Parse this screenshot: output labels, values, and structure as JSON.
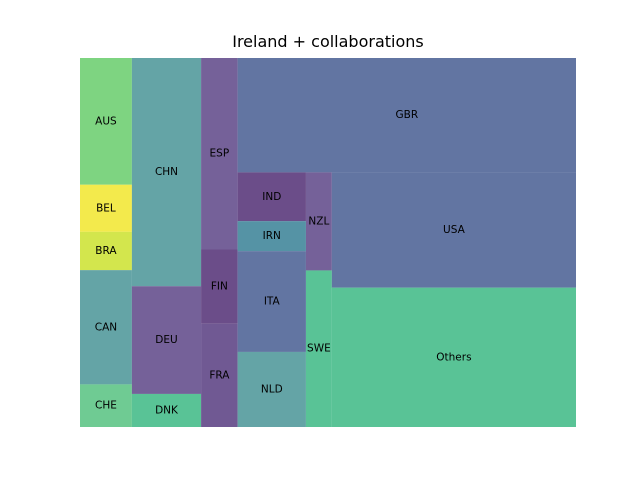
{
  "chart_data": {
    "type": "treemap",
    "title": "Ireland + collaborations",
    "cells": [
      {
        "label": "AUS",
        "value": 6.81,
        "color": "#5ec962"
      },
      {
        "label": "BEL",
        "value": 2.53,
        "color": "#f0e51f"
      },
      {
        "label": "BRA",
        "value": 2.06,
        "color": "#c8e020"
      },
      {
        "label": "CAN",
        "value": 6.14,
        "color": "#3d8d90"
      },
      {
        "label": "CHE",
        "value": 2.29,
        "color": "#4bbe78"
      },
      {
        "label": "CHN",
        "value": 16.36,
        "color": "#3d8d90"
      },
      {
        "label": "DEU",
        "value": 7.72,
        "color": "#533a80"
      },
      {
        "label": "DNK",
        "value": 2.37,
        "color": "#2fb47c"
      },
      {
        "label": "ESP",
        "value": 7.25,
        "color": "#533a80"
      },
      {
        "label": "FIN",
        "value": 2.81,
        "color": "#46216b"
      },
      {
        "label": "FRA",
        "value": 3.91,
        "color": "#4c2f78"
      },
      {
        "label": "GBR",
        "value": 40.09,
        "color": "#3b528b"
      },
      {
        "label": "IND",
        "value": 3.45,
        "color": "#46216b"
      },
      {
        "label": "IRN",
        "value": 2.12,
        "color": "#2a788e"
      },
      {
        "label": "ITA",
        "value": 7.13,
        "color": "#3b528b"
      },
      {
        "label": "NLD",
        "value": 5.31,
        "color": "#3d8d90"
      },
      {
        "label": "NZL",
        "value": 2.63,
        "color": "#533a80"
      },
      {
        "label": "SWE",
        "value": 4.2,
        "color": "#2fb47c"
      },
      {
        "label": "USA",
        "value": 29.15,
        "color": "#3b528b"
      },
      {
        "label": "Others",
        "value": 35.24,
        "color": "#2fb47c"
      }
    ]
  }
}
